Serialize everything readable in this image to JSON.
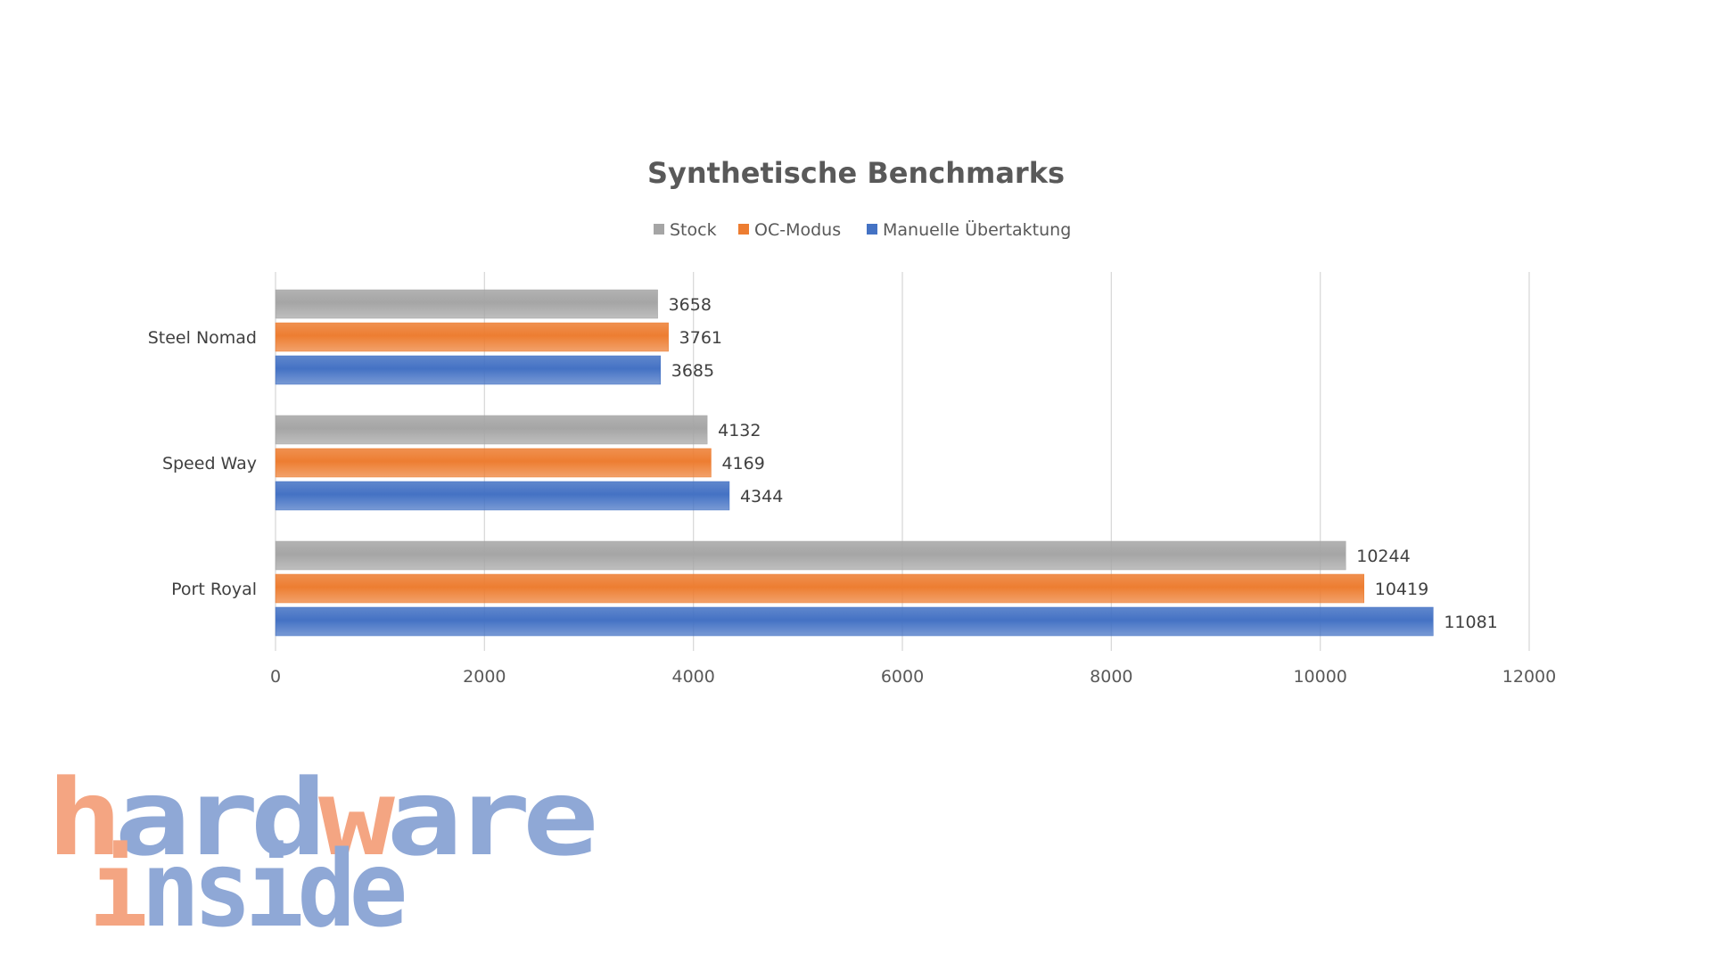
{
  "chart_data": {
    "type": "bar",
    "orientation": "horizontal",
    "title": "Synthetische Benchmarks",
    "categories": [
      "Steel Nomad",
      "Speed Way",
      "Port Royal"
    ],
    "series": [
      {
        "name": "Stock",
        "color": "#a5a5a5",
        "values": [
          3658,
          4132,
          10244
        ]
      },
      {
        "name": "OC-Modus",
        "color": "#ed7d31",
        "values": [
          3761,
          4169,
          10419
        ]
      },
      {
        "name": "Manuelle Übertaktung",
        "color": "#4472c4",
        "values": [
          3685,
          4344,
          11081
        ]
      }
    ],
    "xlim": [
      0,
      12000
    ],
    "xticks": [
      0,
      2000,
      4000,
      6000,
      8000,
      10000,
      12000
    ],
    "grid": "vertical",
    "legend_position": "top",
    "data_labels": true
  },
  "watermark": {
    "line1": "hardware",
    "line2": "inside",
    "colors": {
      "orange": "#f4a582",
      "blue": "#8fa8d6"
    }
  }
}
